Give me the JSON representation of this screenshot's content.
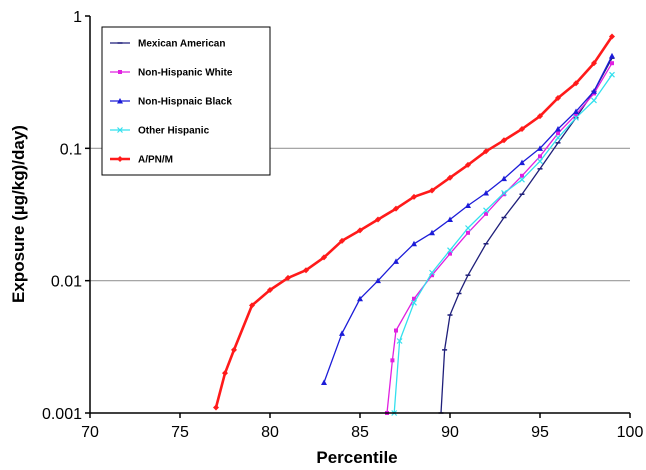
{
  "chart_data": {
    "type": "line",
    "title": "",
    "xlabel": "Percentile",
    "ylabel": "Exposure (µg/kg)/day)",
    "xlim": [
      70,
      100
    ],
    "ylim": [
      0.001,
      1
    ],
    "y_scale": "log",
    "x_ticks": [
      "70",
      "75",
      "80",
      "85",
      "90",
      "95",
      "100"
    ],
    "y_ticks": [
      "0.001",
      "0.01",
      "0.1",
      "1"
    ],
    "grid": "horizontal at 0.01 and 0.1",
    "legend_position": "top-left",
    "series": [
      {
        "name": "Mexican American",
        "color": "#1f1f7a",
        "marker": "dash",
        "x": [
          89.5,
          89.7,
          90,
          90.5,
          91,
          92,
          93,
          94,
          95,
          96,
          97,
          98,
          99
        ],
        "y": [
          0.001,
          0.003,
          0.0055,
          0.008,
          0.011,
          0.019,
          0.03,
          0.045,
          0.07,
          0.11,
          0.17,
          0.27,
          0.48
        ]
      },
      {
        "name": "Non-Hispanic White",
        "color": "#e020e0",
        "marker": "square",
        "x": [
          86.5,
          86.8,
          87,
          88,
          89,
          90,
          91,
          92,
          93,
          94,
          95,
          96,
          97,
          98,
          99
        ],
        "y": [
          0.001,
          0.0025,
          0.0042,
          0.0073,
          0.011,
          0.016,
          0.023,
          0.032,
          0.045,
          0.062,
          0.087,
          0.13,
          0.18,
          0.26,
          0.44
        ]
      },
      {
        "name": "Non-Hispnaic Black",
        "color": "#1c1cd8",
        "marker": "triangle",
        "x": [
          83,
          84,
          85,
          86,
          87,
          88,
          89,
          90,
          91,
          92,
          93,
          94,
          95,
          96,
          97,
          98,
          99
        ],
        "y": [
          0.0017,
          0.004,
          0.0073,
          0.01,
          0.014,
          0.019,
          0.023,
          0.029,
          0.037,
          0.046,
          0.059,
          0.078,
          0.1,
          0.14,
          0.19,
          0.27,
          0.5
        ]
      },
      {
        "name": "Other Hispanic",
        "color": "#33e0ee",
        "marker": "x",
        "x": [
          86.9,
          87.2,
          88,
          89,
          90,
          91,
          92,
          93,
          94,
          95,
          96,
          97,
          98,
          99
        ],
        "y": [
          0.001,
          0.0035,
          0.0068,
          0.0115,
          0.017,
          0.025,
          0.034,
          0.046,
          0.058,
          0.08,
          0.12,
          0.17,
          0.23,
          0.36
        ]
      },
      {
        "name": "A/PN/M",
        "color": "#ff1a1a",
        "marker": "diamond",
        "x": [
          77,
          77.5,
          78,
          79,
          80,
          81,
          82,
          83,
          84,
          85,
          86,
          87,
          88,
          89,
          90,
          91,
          92,
          93,
          94,
          95,
          96,
          97,
          98,
          99
        ],
        "y": [
          0.0011,
          0.002,
          0.003,
          0.0065,
          0.0085,
          0.0105,
          0.012,
          0.015,
          0.02,
          0.024,
          0.029,
          0.035,
          0.043,
          0.048,
          0.06,
          0.075,
          0.095,
          0.115,
          0.14,
          0.175,
          0.24,
          0.31,
          0.44,
          0.7
        ]
      }
    ]
  }
}
